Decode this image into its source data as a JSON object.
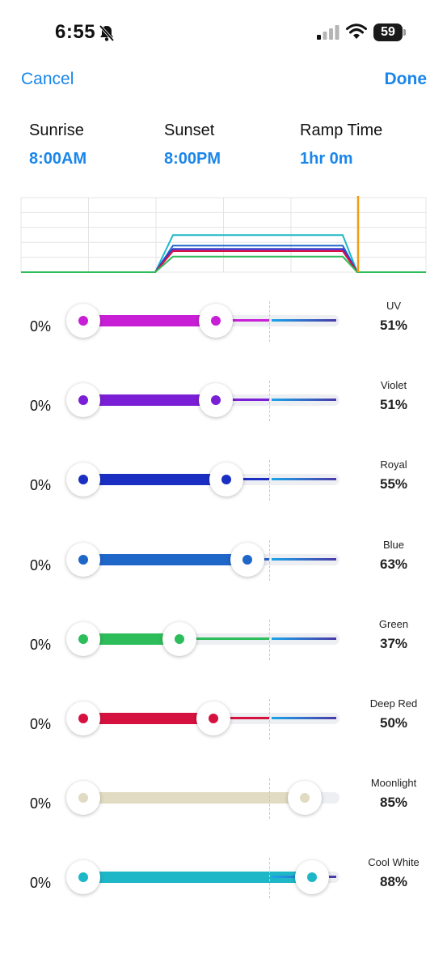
{
  "status": {
    "time": "6:55",
    "battery": "59"
  },
  "nav": {
    "cancel_label": "Cancel",
    "done_label": "Done"
  },
  "schedule": {
    "sunrise": {
      "label": "Sunrise",
      "value": "8:00AM"
    },
    "sunset": {
      "label": "Sunset",
      "value": "8:00PM"
    },
    "ramp": {
      "label": "Ramp Time",
      "value": "1hr 0m"
    }
  },
  "chart_data": {
    "type": "line",
    "xlabel": "",
    "ylabel": "",
    "series": [
      {
        "color": "#1eb7c8",
        "values": [
          0,
          0,
          88,
          88,
          0,
          0
        ]
      },
      {
        "color": "#1f66c9",
        "values": [
          0,
          0,
          63,
          63,
          0,
          0
        ]
      },
      {
        "color": "#1a2fc2",
        "values": [
          0,
          0,
          55,
          55,
          0,
          0
        ]
      },
      {
        "color": "#7a1fd6",
        "values": [
          0,
          0,
          51,
          51,
          0,
          0
        ]
      },
      {
        "color": "#c81fd6",
        "values": [
          0,
          0,
          51,
          51,
          0,
          0
        ]
      },
      {
        "color": "#d5123f",
        "values": [
          0,
          0,
          50,
          50,
          0,
          0
        ]
      },
      {
        "color": "#2dbd5a",
        "values": [
          0,
          0,
          37,
          37,
          0,
          0
        ]
      }
    ],
    "current_time_marker_color": "#f39c12",
    "grid": true
  },
  "channels": [
    {
      "name": "UV",
      "min": "0%",
      "max": "51%",
      "level": 0.51,
      "color": "#c81fd6"
    },
    {
      "name": "Violet",
      "min": "0%",
      "max": "51%",
      "level": 0.51,
      "color": "#7a1fd6"
    },
    {
      "name": "Royal",
      "min": "0%",
      "max": "55%",
      "level": 0.55,
      "color": "#1a2fc2"
    },
    {
      "name": "Blue",
      "min": "0%",
      "max": "63%",
      "level": 0.63,
      "color": "#1f66c9"
    },
    {
      "name": "Green",
      "min": "0%",
      "max": "37%",
      "level": 0.37,
      "color": "#2dbd5a"
    },
    {
      "name": "Deep Red",
      "min": "0%",
      "max": "50%",
      "level": 0.5,
      "color": "#d5123f"
    },
    {
      "name": "Moonlight",
      "min": "0%",
      "max": "85%",
      "level": 0.85,
      "color": "#e0dbc2"
    },
    {
      "name": "Cool White",
      "min": "0%",
      "max": "88%",
      "level": 0.88,
      "color": "#1eb7c8"
    }
  ],
  "icons": {
    "bell": "bell-slash-icon",
    "signal": "cellular-signal-icon",
    "wifi": "wifi-icon",
    "battery": "battery-icon"
  }
}
